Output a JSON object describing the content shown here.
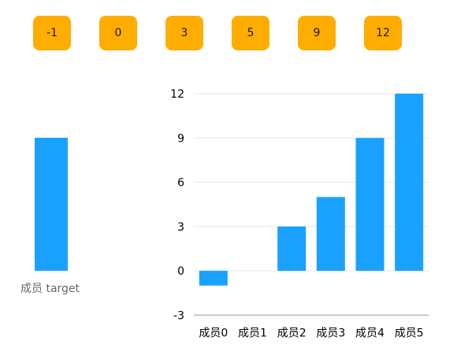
{
  "tiles": [
    "-1",
    "0",
    "3",
    "5",
    "9",
    "12"
  ],
  "target": {
    "label": "成员 target",
    "value": 9
  },
  "chart_data": {
    "type": "bar",
    "categories": [
      "成员0",
      "成员1",
      "成员2",
      "成员3",
      "成员4",
      "成员5"
    ],
    "values": [
      -1,
      0,
      3,
      5,
      9,
      12
    ],
    "yticks": [
      -3,
      0,
      3,
      6,
      9,
      12
    ],
    "ylim": [
      -3,
      12
    ],
    "grid": true,
    "bar_color": "#1aa1ff",
    "grid_color": "#e6e6e6",
    "axis_color": "#999999"
  },
  "colors": {
    "tile": "#ffad00",
    "bar": "#1aa1ff"
  }
}
